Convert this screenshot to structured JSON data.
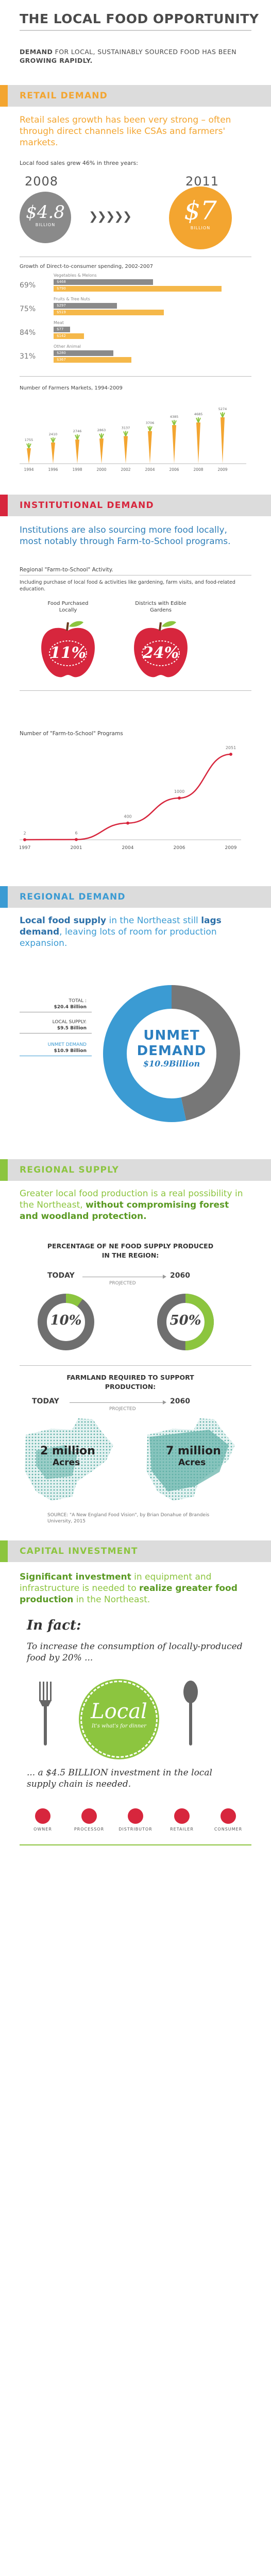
{
  "header": {
    "title": "THE LOCAL FOOD OPPORTUNITY",
    "intro_strong1": "DEMAND",
    "intro_mid": " FOR LOCAL, SUSTAINABLY SOURCED FOOD HAS BEEN ",
    "intro_strong2": "GROWING RAPIDLY."
  },
  "retail": {
    "section_title": "RETAIL DEMAND",
    "lead": "Retail sales growth has been very strong – often through direct channels like CSAs and farmers' markets.",
    "subtitle": "Local food sales grew 46% in three years:",
    "year_start": "2008",
    "year_end": "2011",
    "value_start": "$4.8",
    "value_start_unit": "BILLION",
    "value_end": "$7",
    "value_end_unit": "BILLION",
    "arrows": "❯❯❯❯❯",
    "spending_title": "Growth of Direct-to-consumer spending, 2002-2007",
    "markets_title": "Number of Farmers Markets, 1994-2009"
  },
  "institutional": {
    "section_title": "INSTITUTIONAL DEMAND",
    "lead": "Institutions are also sourcing more food locally, most notably through Farm-to-School programs.",
    "subtitle": "Regional \"Farm-to-School\" Activity.",
    "note": "Including purchase of local food & activities like gardening, farm visits, and food-related education.",
    "apple1_label": "Food Purchased Locally",
    "apple1_value": "11%",
    "apple2_label": "Districts with Edible Gardens",
    "apple2_value": "24%",
    "programs_title": "Number of \"Farm-to-School\" Programs"
  },
  "regional_demand": {
    "section_title": "REGIONAL DEMAND",
    "lead_strong1": "Local food supply",
    "lead_mid1": " in the Northeast still ",
    "lead_strong2": "lags demand",
    "lead_end": ", leaving lots of room for production expansion.",
    "total_label": "TOTAL :",
    "total_value": "$20.4 Billion",
    "supply_label": "LOCAL SUPPLY:",
    "supply_value": "$9.5 Billion",
    "unmet_label": "UNMET DEMAND",
    "unmet_value": "$10.9 Billion",
    "donut_line1": "UNMET",
    "donut_line2": "DEMAND",
    "donut_line3": "$10.9Billion"
  },
  "regional_supply": {
    "section_title": "REGIONAL SUPPLY",
    "lead_plain": "Greater local food production is a real possibility in the Northeast, ",
    "lead_strong": "without compromising forest and woodland protection.",
    "percentage_title": "PERCENTAGE OF NE FOOD SUPPLY PRODUCED  IN THE REGION:",
    "today": "TODAY",
    "year_2060": "2060",
    "projected": "PROJECTED",
    "today_value": "10%",
    "future_value": "50%",
    "farmland_title": "FARMLAND REQUIRED TO SUPPORT PRODUCTION:",
    "today2": "TODAY",
    "year_2060b": "2060",
    "projected2": "PROJECTED",
    "acres_today_num": "2 million",
    "acres_today_unit": "Acres",
    "acres_future_num": "7 million",
    "acres_future_unit": "Acres",
    "source": "SOURCE: \"A New England Food Vision\", by Brian Donahue of Brandeis University, 2015"
  },
  "capital": {
    "section_title": "CAPITAL INVESTMENT",
    "lead_strong1": "Significant investment",
    "lead_mid": " in equipment and infrastructure is needed to ",
    "lead_strong2": "realize greater food production",
    "lead_end": " in the Northeast.",
    "in_fact": "In fact:",
    "quote1": "To increase the consumption of locally-produced food by 20% ...",
    "badge_main": "Local",
    "badge_sub": "It's what's for dinner",
    "quote2": "... a $4.5 BILLION investment in the local supply chain is needed.",
    "chain": [
      "OWNER",
      "PROCESSOR",
      "DISTRIBUTOR",
      "RETAILER",
      "CONSUMER"
    ]
  },
  "colors": {
    "retail": "#f3a530",
    "institutional": "#d7263d",
    "regional_demand": "#3b9bd3",
    "regional_supply": "#8cc53f",
    "capital": "#8cc53f"
  },
  "chart_data": [
    {
      "type": "bar",
      "title": "Growth of Direct-to-consumer spending, 2002-2007",
      "categories": [
        "Vegetables & Melons",
        "Fruits & Tree Nuts",
        "Meat",
        "Other Animal"
      ],
      "growth_labels": [
        "69%",
        "75%",
        "84%",
        "31%"
      ],
      "series": [
        {
          "name": "2002",
          "values": [
            468,
            297,
            77,
            280
          ]
        },
        {
          "name": "2007",
          "values": [
            790,
            519,
            142,
            367
          ]
        }
      ],
      "value_labels_2002": [
        "$468",
        "$297",
        "$77",
        "$280"
      ],
      "value_labels_2007": [
        "$790",
        "$519",
        "$142",
        "$367"
      ]
    },
    {
      "type": "bar",
      "title": "Number of Farmers Markets, 1994-2009",
      "categories": [
        "1994",
        "1996",
        "1998",
        "2000",
        "2002",
        "2004",
        "2006",
        "2008",
        "2009"
      ],
      "values": [
        1755,
        2410,
        2746,
        2863,
        3137,
        3706,
        4385,
        4685,
        5274
      ],
      "value_labels": [
        "1755",
        "2410",
        "2746",
        "2863",
        "3137",
        "3706",
        "4385",
        "4685",
        "5274"
      ]
    },
    {
      "type": "line",
      "title": "Number of \"Farm-to-School\" Programs",
      "x": [
        "1997",
        "2001",
        "2004",
        "2006",
        "2009"
      ],
      "y": [
        2,
        6,
        400,
        1000,
        2051
      ],
      "value_labels": [
        "2",
        "6",
        "400",
        "1000",
        "2051"
      ]
    },
    {
      "type": "pie",
      "categories": [
        "LOCAL SUPPLY",
        "UNMET DEMAND"
      ],
      "values": [
        9.5,
        10.9
      ]
    }
  ]
}
